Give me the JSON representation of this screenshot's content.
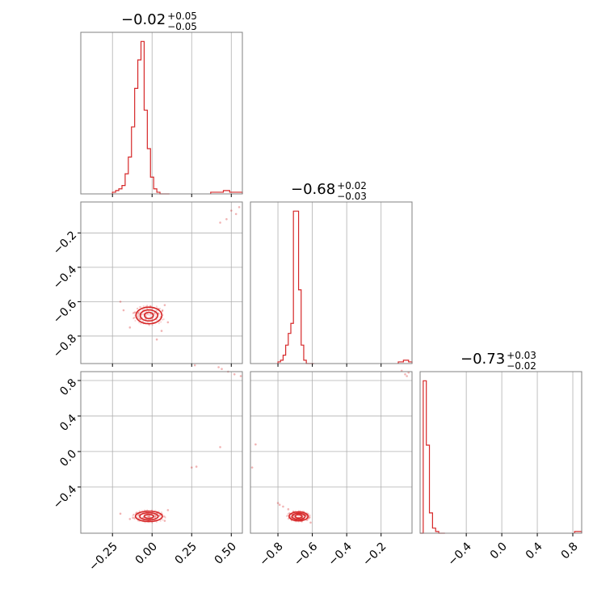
{
  "chart_data": {
    "type": "corner",
    "color": "#d62728",
    "parameters": [
      {
        "title": {
          "median": "−0.02",
          "upper": "+0.05",
          "lower": "−0.05"
        },
        "range": [
          -0.45,
          0.57
        ],
        "ticks": [
          -0.25,
          0.0,
          0.25,
          0.5
        ],
        "tick_labels": [
          "−0.25",
          "0.00",
          "0.25",
          "0.50"
        ],
        "hist": {
          "edges": [
            -0.25,
            -0.23,
            -0.21,
            -0.19,
            -0.17,
            -0.15,
            -0.13,
            -0.11,
            -0.09,
            -0.07,
            -0.05,
            -0.03,
            -0.01,
            0.01,
            0.03,
            0.05,
            0.07,
            0.09,
            0.11
          ],
          "counts": [
            1,
            2,
            3,
            5,
            12,
            22,
            40,
            63,
            80,
            91,
            50,
            27,
            10,
            3,
            1,
            0,
            0,
            0
          ],
          "tail_edges": [
            0.37,
            0.41,
            0.45,
            0.49,
            0.53,
            0.57
          ],
          "tail_counts": [
            1,
            1,
            2,
            1,
            1
          ]
        }
      },
      {
        "title": {
          "median": "−0.68",
          "upper": "+0.02",
          "lower": "−0.03"
        },
        "range": [
          -0.96,
          -0.02
        ],
        "ticks": [
          -0.8,
          -0.6,
          -0.4,
          -0.2
        ],
        "tick_labels": [
          "−0.8",
          "−0.6",
          "−0.4",
          "−0.2"
        ],
        "hist": {
          "edges": [
            -0.8,
            -0.785,
            -0.77,
            -0.755,
            -0.74,
            -0.725,
            -0.71,
            -0.695,
            -0.68,
            -0.665,
            -0.65,
            -0.635,
            -0.62,
            -0.605,
            -0.59
          ],
          "counts": [
            1,
            2,
            5,
            11,
            18,
            24,
            91,
            91,
            44,
            11,
            2,
            0,
            0,
            0
          ],
          "tail_edges": [
            -0.1,
            -0.07,
            -0.04,
            -0.02
          ],
          "tail_counts": [
            1,
            2,
            1
          ]
        }
      },
      {
        "title": {
          "median": "−0.73",
          "upper": "+0.03",
          "lower": "−0.02"
        },
        "range": [
          -0.92,
          0.9
        ],
        "ticks": [
          -0.4,
          0.0,
          0.4,
          0.8
        ],
        "tick_labels": [
          "−0.4",
          "0.0",
          "0.4",
          "0.8"
        ],
        "hist": {
          "edges": [
            -0.92,
            -0.885,
            -0.85,
            -0.815,
            -0.78,
            -0.745,
            -0.71,
            -0.675,
            -0.64
          ],
          "counts": [
            0,
            90,
            52,
            12,
            3,
            1,
            0,
            0
          ],
          "tail_edges": [
            0.82,
            0.86,
            0.9
          ],
          "tail_counts": [
            1,
            1
          ]
        }
      }
    ],
    "pairs": [
      {
        "x_param": 0,
        "y_param": 1,
        "center": [
          -0.02,
          -0.68
        ],
        "contours": [
          {
            "rx": 0.028,
            "ry": 0.018
          },
          {
            "rx": 0.055,
            "ry": 0.032
          },
          {
            "rx": 0.082,
            "ry": 0.048
          }
        ],
        "scatter": [
          [
            0.47,
            -0.12
          ],
          [
            0.5,
            -0.07
          ],
          [
            0.53,
            -0.09
          ],
          [
            0.43,
            -0.14
          ],
          [
            0.55,
            -0.05
          ],
          [
            0.27,
            -0.97
          ],
          [
            0.03,
            -0.82
          ],
          [
            -0.2,
            -0.6
          ],
          [
            0.08,
            -0.62
          ],
          [
            -0.14,
            -0.75
          ],
          [
            0.1,
            -0.72
          ],
          [
            -0.18,
            -0.65
          ],
          [
            0.06,
            -0.77
          ]
        ]
      },
      {
        "x_param": 0,
        "y_param": 2,
        "center": [
          -0.02,
          -0.73
        ],
        "contours": [
          {
            "rx": 0.03,
            "ry": 0.022
          },
          {
            "rx": 0.058,
            "ry": 0.04
          },
          {
            "rx": 0.085,
            "ry": 0.058
          }
        ],
        "scatter": [
          [
            0.44,
            0.93
          ],
          [
            0.48,
            0.9
          ],
          [
            0.52,
            0.87
          ],
          [
            0.56,
            0.85
          ],
          [
            0.42,
            0.95
          ],
          [
            0.43,
            0.05
          ],
          [
            0.25,
            -0.18
          ],
          [
            0.28,
            -0.17
          ],
          [
            0.1,
            -0.66
          ],
          [
            -0.2,
            -0.7
          ],
          [
            0.08,
            -0.78
          ],
          [
            -0.14,
            -0.76
          ]
        ]
      },
      {
        "x_param": 1,
        "y_param": 2,
        "center": [
          -0.68,
          -0.73
        ],
        "contours": [
          {
            "rx": 0.02,
            "ry": 0.02
          },
          {
            "rx": 0.038,
            "ry": 0.035
          },
          {
            "rx": 0.055,
            "ry": 0.05
          }
        ],
        "scatter": [
          [
            -0.08,
            0.91
          ],
          [
            -0.06,
            0.87
          ],
          [
            -0.04,
            0.89
          ],
          [
            -0.05,
            0.85
          ],
          [
            -0.93,
            0.08
          ],
          [
            -0.95,
            -0.18
          ],
          [
            -0.8,
            -0.58
          ],
          [
            -0.77,
            -0.62
          ],
          [
            -0.74,
            -0.65
          ],
          [
            -0.71,
            -0.68
          ],
          [
            -0.66,
            -0.74
          ],
          [
            -0.63,
            -0.77
          ],
          [
            -0.61,
            -0.8
          ],
          [
            -0.79,
            -0.6
          ]
        ]
      }
    ]
  }
}
